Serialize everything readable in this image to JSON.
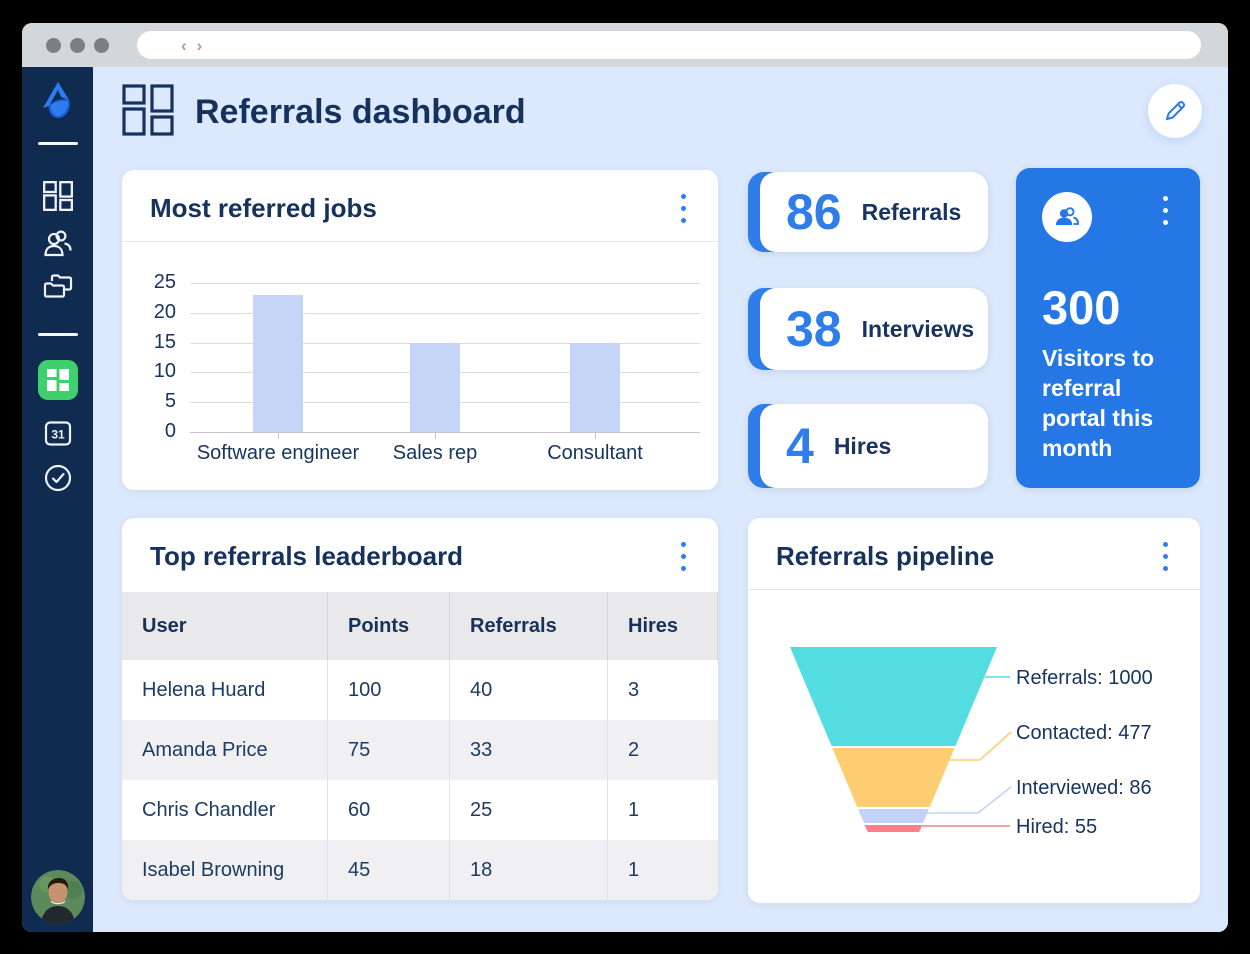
{
  "theme": {
    "accent_blue": "#2f7bf0",
    "stat_number_blue": "#2e7de9",
    "visitors_card_blue": "#2577e6",
    "navy_text": "#16325c",
    "sidebar_bg": "#102b50",
    "content_bg": "#dce8fc",
    "bar_color": "#c5d5f8",
    "active_nav_green": "#3ed06c"
  },
  "browser": {
    "url_text": ""
  },
  "sidebar": {
    "calendar_label": "31"
  },
  "header": {
    "title": "Referrals dashboard"
  },
  "jobs_card": {
    "title": "Most referred jobs"
  },
  "stats": [
    {
      "value": "86",
      "label": "Referrals"
    },
    {
      "value": "38",
      "label": "Interviews"
    },
    {
      "value": "4",
      "label": "Hires"
    }
  ],
  "visitors": {
    "value": "300",
    "label": "Visitors to referral portal this month"
  },
  "leaderboard": {
    "title": "Top referrals leaderboard",
    "columns": [
      "User",
      "Points",
      "Referrals",
      "Hires"
    ],
    "rows": [
      [
        "Helena Huard",
        "100",
        "40",
        "3"
      ],
      [
        "Amanda Price",
        "75",
        "33",
        "2"
      ],
      [
        "Chris Chandler",
        "60",
        "25",
        "1"
      ],
      [
        "Isabel Browning",
        "45",
        "18",
        "1"
      ]
    ]
  },
  "pipeline_card": {
    "title": "Referrals pipeline"
  },
  "chart_data": [
    {
      "type": "bar",
      "title": "Most referred jobs",
      "categories": [
        "Software engineer",
        "Sales rep",
        "Consultant"
      ],
      "values": [
        23,
        15,
        15
      ],
      "yticks": [
        25,
        20,
        15,
        10,
        5,
        0
      ],
      "ylim": [
        0,
        25
      ],
      "xlabel": "",
      "ylabel": "",
      "grid": true,
      "legend": false
    },
    {
      "type": "funnel",
      "title": "Referrals pipeline",
      "stages": [
        {
          "label": "Referrals",
          "value": 1000,
          "color": "#54dde1"
        },
        {
          "label": "Contacted",
          "value": 477,
          "color": "#fccd71"
        },
        {
          "label": "Interviewed",
          "value": 86,
          "color": "#c3d2f8"
        },
        {
          "label": "Hired",
          "value": 55,
          "color": "#f8808b"
        }
      ]
    }
  ]
}
